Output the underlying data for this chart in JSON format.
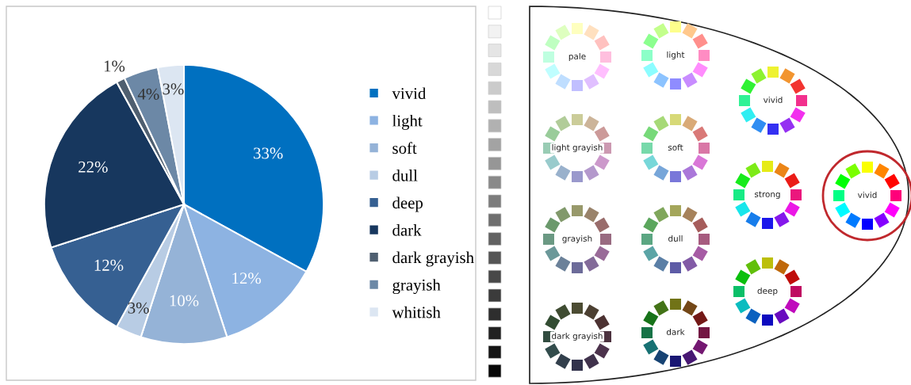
{
  "chart_data": [
    {
      "type": "pie",
      "categories": [
        "vivid",
        "light",
        "soft",
        "dull",
        "deep",
        "dark",
        "dark grayish",
        "grayish",
        "whitish"
      ],
      "values": [
        33,
        12,
        10,
        3,
        12,
        22,
        1,
        4,
        3
      ],
      "value_labels": [
        "33%",
        "12%",
        "10%",
        "3%",
        "12%",
        "22%",
        "1%",
        "4%",
        "3%"
      ],
      "colors": [
        "#0070c0",
        "#8db3e2",
        "#95b3d7",
        "#b8cce4",
        "#366092",
        "#17375e",
        "#4f5f70",
        "#6c88a6",
        "#dce6f2"
      ],
      "legend": "right"
    },
    {
      "type": "other",
      "annotations": [
        "pale",
        "light",
        "vivid",
        "light grayish",
        "soft",
        "strong",
        "vivid",
        "grayish",
        "dull",
        "deep",
        "dark grayish",
        "dark"
      ]
    }
  ]
}
